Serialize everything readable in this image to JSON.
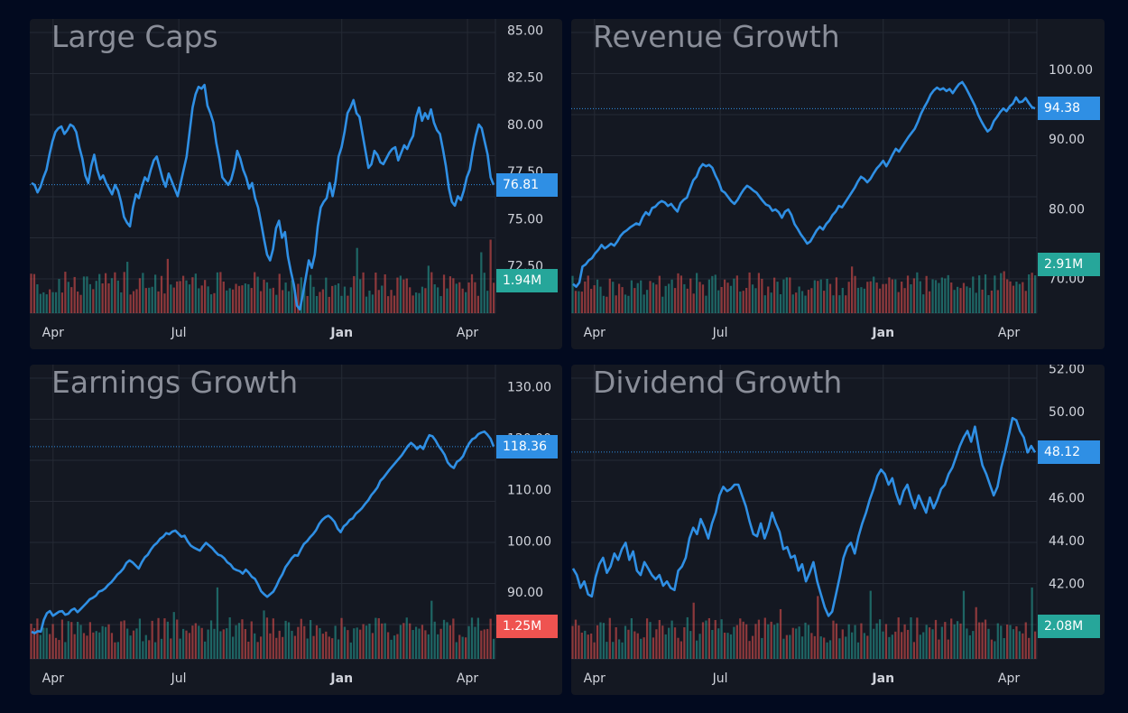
{
  "colors": {
    "line": "#2f8fe4",
    "up": "#26a69a",
    "down": "#ef5350",
    "grid": "#252a35",
    "text": "#d1d4dc"
  },
  "chart_data": [
    {
      "type": "line",
      "title": "Large Caps",
      "x_ticks": [
        {
          "label": "Apr",
          "bold": false,
          "t": 0.05
        },
        {
          "label": "Jul",
          "bold": false,
          "t": 0.32
        },
        {
          "label": "Jan",
          "bold": true,
          "t": 0.67
        },
        {
          "label": "Apr",
          "bold": false,
          "t": 0.94
        }
      ],
      "y_ticks": [
        "85.00",
        "82.50",
        "80.00",
        "77.50",
        "75.00",
        "72.50"
      ],
      "y_range": [
        70.0,
        85.5
      ],
      "last_value": "76.81",
      "last": 76.81,
      "volume_label": "1.94M",
      "volume_up": true,
      "y_points": [
        76.9,
        76.8,
        76.4,
        76.7,
        77.2,
        77.6,
        78.4,
        79.1,
        79.6,
        79.8,
        79.9,
        79.5,
        79.7,
        80.0,
        79.9,
        79.6,
        78.8,
        78.2,
        77.3,
        76.9,
        77.8,
        78.4,
        77.6,
        77.1,
        77.3,
        76.9,
        76.6,
        76.3,
        76.8,
        76.5,
        75.9,
        75.1,
        74.8,
        74.6,
        75.6,
        76.3,
        76.1,
        76.7,
        77.2,
        77.0,
        77.6,
        78.1,
        78.3,
        77.7,
        77.1,
        76.7,
        77.4,
        77.0,
        76.6,
        76.2,
        76.9,
        77.6,
        78.3,
        79.6,
        80.9,
        81.6,
        82.0,
        81.9,
        82.1,
        81.0,
        80.6,
        80.1,
        79.0,
        78.2,
        77.2,
        77.0,
        76.8,
        77.1,
        77.7,
        78.6,
        78.2,
        77.6,
        77.2,
        76.6,
        76.9,
        76.1,
        75.6,
        74.8,
        73.9,
        73.1,
        72.8,
        73.4,
        74.5,
        74.9,
        74.0,
        74.3,
        73.0,
        72.2,
        71.5,
        70.4,
        70.2,
        71.0,
        71.9,
        72.8,
        72.4,
        73.1,
        74.6,
        75.6,
        75.9,
        76.1,
        76.9,
        76.2,
        77.0,
        78.3,
        78.8,
        79.6,
        80.6,
        80.9,
        81.3,
        80.6,
        80.4,
        79.5,
        78.6,
        77.7,
        77.9,
        78.6,
        78.4,
        78.0,
        77.9,
        78.2,
        78.5,
        78.7,
        78.8,
        78.1,
        78.5,
        78.9,
        78.7,
        79.1,
        79.4,
        80.4,
        80.9,
        80.2,
        80.6,
        80.3,
        80.8,
        80.1,
        79.7,
        79.5,
        78.7,
        77.8,
        76.6,
        75.9,
        75.7,
        76.2,
        76.0,
        76.5,
        77.2,
        77.6,
        78.6,
        79.4,
        80.0,
        79.8,
        79.1,
        78.4,
        77.2,
        76.8
      ]
    },
    {
      "type": "line",
      "title": "Revenue Growth",
      "x_ticks": [
        {
          "label": "Apr",
          "bold": false,
          "t": 0.05
        },
        {
          "label": "Jul",
          "bold": false,
          "t": 0.32
        },
        {
          "label": "Jan",
          "bold": true,
          "t": 0.67
        },
        {
          "label": "Apr",
          "bold": false,
          "t": 0.94
        }
      ],
      "y_ticks": [
        "100.00",
        "90.00",
        "80.00",
        "70.00"
      ],
      "y_range": [
        65.0,
        107.0
      ],
      "last_value": "94.38",
      "last": 94.38,
      "volume_label": "2.91M",
      "volume_up": true,
      "y_points": [
        69.2,
        68.8,
        69.4,
        71.7,
        72.0,
        72.6,
        72.9,
        73.6,
        74.1,
        74.8,
        74.3,
        74.6,
        75.0,
        74.7,
        75.3,
        76.1,
        76.6,
        76.9,
        77.3,
        77.6,
        77.9,
        77.7,
        78.8,
        79.5,
        79.1,
        80.1,
        80.3,
        80.8,
        81.1,
        80.9,
        80.4,
        80.7,
        80.1,
        79.6,
        80.8,
        81.3,
        81.6,
        82.9,
        84.1,
        84.6,
        85.8,
        86.4,
        86.1,
        86.3,
        85.9,
        84.8,
        83.9,
        82.6,
        82.3,
        81.7,
        81.1,
        80.7,
        81.3,
        82.1,
        82.8,
        83.3,
        83.0,
        82.6,
        82.3,
        81.7,
        81.1,
        80.6,
        80.4,
        79.7,
        79.9,
        79.5,
        78.7,
        79.6,
        79.9,
        79.1,
        77.8,
        77.1,
        76.3,
        75.7,
        75.0,
        75.3,
        76.1,
        76.9,
        77.4,
        77.0,
        77.8,
        78.3,
        79.1,
        79.6,
        80.4,
        80.2,
        80.9,
        81.6,
        82.3,
        83.0,
        83.9,
        84.6,
        84.3,
        83.8,
        84.3,
        85.1,
        85.8,
        86.3,
        86.9,
        86.1,
        86.9,
        87.8,
        88.6,
        88.2,
        88.9,
        89.6,
        90.3,
        90.9,
        91.5,
        92.5,
        93.7,
        94.6,
        95.4,
        96.4,
        97.0,
        97.4,
        97.1,
        97.3,
        96.9,
        97.2,
        96.6,
        97.3,
        97.9,
        98.2,
        97.5,
        96.6,
        95.7,
        94.8,
        93.5,
        92.6,
        91.8,
        91.1,
        91.5,
        92.6,
        93.2,
        93.9,
        94.4,
        94.0,
        94.7,
        95.1,
        96.0,
        95.3,
        95.4,
        95.9,
        95.2,
        94.6,
        94.4
      ]
    },
    {
      "type": "line",
      "title": "Earnings Growth",
      "x_ticks": [
        {
          "label": "Apr",
          "bold": false,
          "t": 0.05
        },
        {
          "label": "Jul",
          "bold": false,
          "t": 0.32
        },
        {
          "label": "Jan",
          "bold": true,
          "t": 0.67
        },
        {
          "label": "Apr",
          "bold": false,
          "t": 0.94
        }
      ],
      "y_ticks": [
        "130.00",
        "120.00",
        "110.00",
        "100.00",
        "90.00"
      ],
      "y_range": [
        77.0,
        134.0
      ],
      "last_value": "118.36",
      "last": 118.36,
      "volume_label": "1.25M",
      "volume_up": false,
      "y_points": [
        82.3,
        82.0,
        82.4,
        82.3,
        84.6,
        85.9,
        86.3,
        85.4,
        85.8,
        86.2,
        86.3,
        85.6,
        85.8,
        86.5,
        86.8,
        86.1,
        86.7,
        87.3,
        87.9,
        88.6,
        88.9,
        89.3,
        90.1,
        90.3,
        90.7,
        91.4,
        91.9,
        92.6,
        93.4,
        93.9,
        94.6,
        95.7,
        96.2,
        95.8,
        95.2,
        94.6,
        95.8,
        96.8,
        97.3,
        98.3,
        99.1,
        99.6,
        100.4,
        100.8,
        101.5,
        101.3,
        101.8,
        102.0,
        101.4,
        100.8,
        101.0,
        99.9,
        99.1,
        98.7,
        98.4,
        98.1,
        98.9,
        99.6,
        99.1,
        98.6,
        97.9,
        97.3,
        97.1,
        96.6,
        95.8,
        95.4,
        94.6,
        94.3,
        94.1,
        93.6,
        94.4,
        93.8,
        93.0,
        92.6,
        91.5,
        90.2,
        89.6,
        89.1,
        89.6,
        90.1,
        91.2,
        92.5,
        93.5,
        94.9,
        95.7,
        96.6,
        97.2,
        97.1,
        98.3,
        99.4,
        99.9,
        100.7,
        101.3,
        102.1,
        103.3,
        104.1,
        104.6,
        104.9,
        104.4,
        103.7,
        102.4,
        101.7,
        102.8,
        103.3,
        104.1,
        104.4,
        105.3,
        105.8,
        106.4,
        107.2,
        107.9,
        108.9,
        109.6,
        110.4,
        111.7,
        112.3,
        113.1,
        113.9,
        114.6,
        115.3,
        116.0,
        116.7,
        117.6,
        118.5,
        119.1,
        118.6,
        117.9,
        118.5,
        117.9,
        119.4,
        120.6,
        120.4,
        119.6,
        118.5,
        117.7,
        116.8,
        115.3,
        114.6,
        114.2,
        115.4,
        115.8,
        116.5,
        117.9,
        119.0,
        119.8,
        120.1,
        120.8,
        121.1,
        121.3,
        120.7,
        119.9,
        118.4
      ]
    },
    {
      "type": "line",
      "title": "Dividend Growth",
      "x_ticks": [
        {
          "label": "Apr",
          "bold": false,
          "t": 0.05
        },
        {
          "label": "Jul",
          "bold": false,
          "t": 0.32
        },
        {
          "label": "Jan",
          "bold": true,
          "t": 0.67
        },
        {
          "label": "Apr",
          "bold": false,
          "t": 0.94
        }
      ],
      "y_ticks": [
        "52.00",
        "50.00",
        "48.00",
        "46.00",
        "44.00",
        "42.00"
      ],
      "y_range": [
        38.5,
        52.1
      ],
      "last_value": "48.12",
      "last": 48.12,
      "volume_label": "2.08M",
      "volume_up": true,
      "y_points": [
        42.7,
        42.4,
        41.8,
        42.1,
        41.5,
        41.4,
        42.3,
        42.9,
        43.2,
        42.5,
        42.8,
        43.4,
        43.1,
        43.6,
        43.9,
        43.1,
        43.5,
        42.6,
        42.4,
        43.0,
        42.7,
        42.4,
        42.2,
        42.4,
        41.9,
        42.1,
        41.8,
        41.7,
        42.6,
        42.8,
        43.2,
        44.1,
        44.6,
        44.3,
        45.0,
        44.6,
        44.1,
        44.8,
        45.3,
        46.1,
        46.5,
        46.3,
        46.4,
        46.6,
        46.6,
        46.1,
        45.6,
        44.9,
        44.3,
        44.2,
        44.8,
        44.1,
        44.6,
        45.3,
        44.8,
        44.4,
        43.6,
        43.7,
        43.2,
        43.3,
        42.6,
        42.9,
        42.1,
        42.5,
        43.0,
        42.1,
        41.5,
        40.9,
        40.5,
        40.7,
        41.5,
        42.3,
        43.2,
        43.7,
        43.9,
        43.4,
        44.2,
        44.8,
        45.3,
        45.9,
        46.4,
        47.0,
        47.3,
        47.1,
        46.6,
        46.9,
        46.2,
        45.7,
        46.3,
        46.6,
        46.0,
        45.5,
        46.1,
        45.7,
        45.3,
        46.0,
        45.5,
        45.9,
        46.4,
        46.6,
        47.1,
        47.4,
        47.9,
        48.4,
        48.8,
        49.1,
        48.6,
        49.3,
        48.3,
        47.5,
        47.1,
        46.6,
        46.1,
        46.5,
        47.4,
        48.1,
        48.9,
        49.7,
        49.6,
        49.1,
        48.8,
        48.1,
        48.4,
        48.1
      ]
    }
  ]
}
